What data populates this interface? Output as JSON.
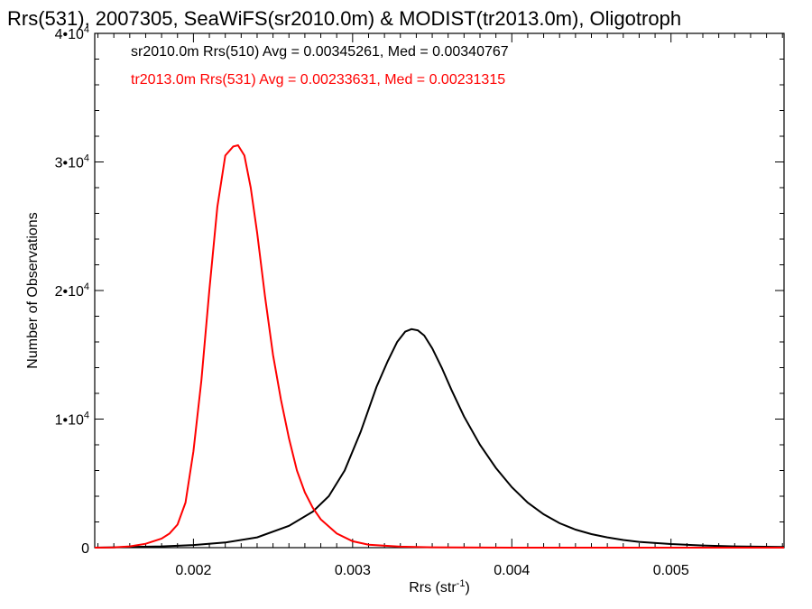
{
  "chart_data": {
    "type": "line",
    "title": "Rrs(531), 2007305, SeaWiFS(sr2010.0m) & MODIST(tr2013.0m), Oligotroph",
    "xlabel_main": "Rrs (str",
    "xlabel_sup": "-1",
    "xlabel_end": ")",
    "ylabel": "Number of Observations",
    "xlim": [
      0.00138,
      0.00571
    ],
    "ylim": [
      0,
      40000
    ],
    "x_ticks": [
      0.002,
      0.003,
      0.004,
      0.005
    ],
    "x_tick_labels": [
      "0.002",
      "0.003",
      "0.004",
      "0.005"
    ],
    "y_ticks": [
      {
        "value": 0,
        "base": "0",
        "exp": ""
      },
      {
        "value": 10000,
        "base": "1•10",
        "exp": "4"
      },
      {
        "value": 20000,
        "base": "2•10",
        "exp": "4"
      },
      {
        "value": 30000,
        "base": "3•10",
        "exp": "4"
      },
      {
        "value": 40000,
        "base": "4•10",
        "exp": "4"
      }
    ],
    "grid": false,
    "legend_placement": "top-left",
    "series": [
      {
        "color": "#000000",
        "label": "sr2010.0m Rrs(510) Avg = 0.00345261, Med = 0.00340767",
        "x": [
          0.00138,
          0.0016,
          0.0018,
          0.002,
          0.0022,
          0.0024,
          0.0026,
          0.00275,
          0.00285,
          0.00295,
          0.00305,
          0.00315,
          0.00322,
          0.00328,
          0.00333,
          0.00337,
          0.00341,
          0.00345,
          0.0035,
          0.00356,
          0.00362,
          0.0037,
          0.0038,
          0.0039,
          0.004,
          0.0041,
          0.0042,
          0.0043,
          0.0044,
          0.0045,
          0.0046,
          0.0047,
          0.0048,
          0.005,
          0.0052,
          0.0054,
          0.00571
        ],
        "y": [
          0,
          50,
          100,
          200,
          400,
          800,
          1700,
          2800,
          4000,
          6000,
          9000,
          12500,
          14500,
          16000,
          16800,
          17000,
          16900,
          16500,
          15500,
          14000,
          12300,
          10200,
          8000,
          6200,
          4700,
          3500,
          2600,
          1900,
          1400,
          1050,
          800,
          600,
          450,
          280,
          170,
          100,
          50
        ]
      },
      {
        "color": "#ff0000",
        "label": "tr2013.0m Rrs(531) Avg = 0.00233631, Med = 0.00231315",
        "x": [
          0.00138,
          0.0015,
          0.0016,
          0.0017,
          0.0018,
          0.00185,
          0.0019,
          0.00195,
          0.002,
          0.00205,
          0.0021,
          0.00215,
          0.0022,
          0.00225,
          0.00228,
          0.00232,
          0.00236,
          0.0024,
          0.00245,
          0.0025,
          0.00255,
          0.0026,
          0.00265,
          0.0027,
          0.00275,
          0.0028,
          0.0029,
          0.003,
          0.0031,
          0.0033,
          0.0035,
          0.004,
          0.00571
        ],
        "y": [
          0,
          20,
          100,
          300,
          700,
          1100,
          1800,
          3500,
          7500,
          13000,
          20000,
          26500,
          30500,
          31200,
          31300,
          30500,
          28000,
          24500,
          19500,
          15000,
          11500,
          8500,
          6000,
          4300,
          3100,
          2200,
          1100,
          500,
          230,
          80,
          30,
          0,
          0
        ]
      }
    ]
  }
}
